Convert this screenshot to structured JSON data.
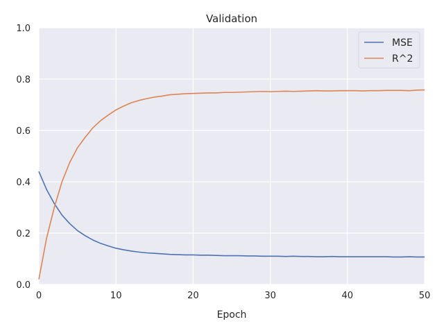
{
  "chart_data": {
    "type": "line",
    "title": "Validation",
    "xlabel": "Epoch",
    "ylabel": "",
    "xlim": [
      0,
      50
    ],
    "ylim": [
      0,
      1.0
    ],
    "xticks": [
      "0",
      "10",
      "20",
      "30",
      "40",
      "50"
    ],
    "yticks": [
      "0.0",
      "0.2",
      "0.4",
      "0.6",
      "0.8",
      "1.0"
    ],
    "grid": true,
    "legend_position": "top-right",
    "background": "#EAEAF2",
    "series": [
      {
        "name": "MSE",
        "color": "#4C72B0",
        "x": [
          0,
          1,
          2,
          3,
          4,
          5,
          6,
          7,
          8,
          9,
          10,
          11,
          12,
          13,
          14,
          15,
          16,
          17,
          18,
          19,
          20,
          21,
          22,
          23,
          24,
          25,
          26,
          27,
          28,
          29,
          30,
          31,
          32,
          33,
          34,
          35,
          36,
          37,
          38,
          39,
          40,
          41,
          42,
          43,
          44,
          45,
          46,
          47,
          48,
          49,
          50
        ],
        "values": [
          0.44,
          0.37,
          0.315,
          0.27,
          0.237,
          0.21,
          0.19,
          0.173,
          0.16,
          0.15,
          0.141,
          0.135,
          0.13,
          0.126,
          0.123,
          0.121,
          0.119,
          0.117,
          0.116,
          0.115,
          0.115,
          0.114,
          0.114,
          0.113,
          0.112,
          0.112,
          0.112,
          0.111,
          0.111,
          0.11,
          0.11,
          0.11,
          0.109,
          0.11,
          0.109,
          0.109,
          0.108,
          0.108,
          0.109,
          0.108,
          0.108,
          0.108,
          0.108,
          0.108,
          0.108,
          0.108,
          0.107,
          0.107,
          0.108,
          0.107,
          0.107
        ]
      },
      {
        "name": "R^2",
        "color": "#DD8452",
        "x": [
          0,
          1,
          2,
          3,
          4,
          5,
          6,
          7,
          8,
          9,
          10,
          11,
          12,
          13,
          14,
          15,
          16,
          17,
          18,
          19,
          20,
          21,
          22,
          23,
          24,
          25,
          26,
          27,
          28,
          29,
          30,
          31,
          32,
          33,
          34,
          35,
          36,
          37,
          38,
          39,
          40,
          41,
          42,
          43,
          44,
          45,
          46,
          47,
          48,
          49,
          50
        ],
        "values": [
          0.02,
          0.18,
          0.3,
          0.4,
          0.475,
          0.532,
          0.573,
          0.61,
          0.638,
          0.66,
          0.68,
          0.695,
          0.708,
          0.717,
          0.724,
          0.73,
          0.734,
          0.739,
          0.741,
          0.743,
          0.744,
          0.745,
          0.746,
          0.746,
          0.748,
          0.748,
          0.749,
          0.75,
          0.751,
          0.752,
          0.751,
          0.752,
          0.753,
          0.752,
          0.753,
          0.754,
          0.755,
          0.754,
          0.754,
          0.755,
          0.755,
          0.755,
          0.754,
          0.755,
          0.755,
          0.756,
          0.756,
          0.756,
          0.755,
          0.757,
          0.758
        ]
      }
    ]
  }
}
